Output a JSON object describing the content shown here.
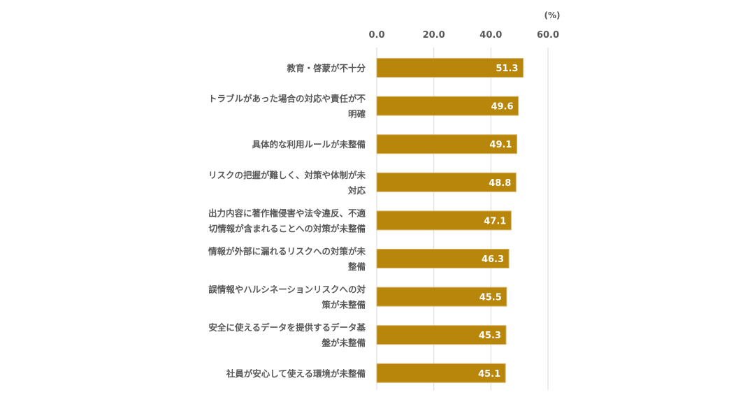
{
  "chart_data": {
    "type": "bar",
    "orientation": "horizontal",
    "unit": "(%)",
    "x_ticks": [
      "0.0",
      "20.0",
      "40.0",
      "60.0"
    ],
    "xlim": [
      0,
      60
    ],
    "grid": true,
    "bar_color": "#B8860B",
    "bar_border_color": "#D9B36A",
    "data_label_color": "#FFFFFF",
    "categories": [
      [
        "教育・啓蒙が不十分"
      ],
      [
        "トラブルがあった場合の対応や責任が不",
        "明確"
      ],
      [
        "具体的な利用ルールが未整備"
      ],
      [
        "リスクの把握が難しく、対策や体制が未",
        "対応"
      ],
      [
        "出力内容に著作権侵害や法令違反、不適",
        "切情報が含まれることへの対策が未整備"
      ],
      [
        "情報が外部に漏れるリスクへの対策が未",
        "整備"
      ],
      [
        "誤情報やハルシネーションリスクへの対",
        "策が未整備"
      ],
      [
        "安全に使えるデータを提供するデータ基",
        "盤が未整備"
      ],
      [
        "社員が安心して使える環境が未整備"
      ]
    ],
    "values": [
      51.3,
      49.6,
      49.1,
      48.8,
      47.1,
      46.3,
      45.5,
      45.3,
      45.1
    ],
    "value_labels": [
      "51.3",
      "49.6",
      "49.1",
      "48.8",
      "47.1",
      "46.3",
      "45.5",
      "45.3",
      "45.1"
    ]
  }
}
